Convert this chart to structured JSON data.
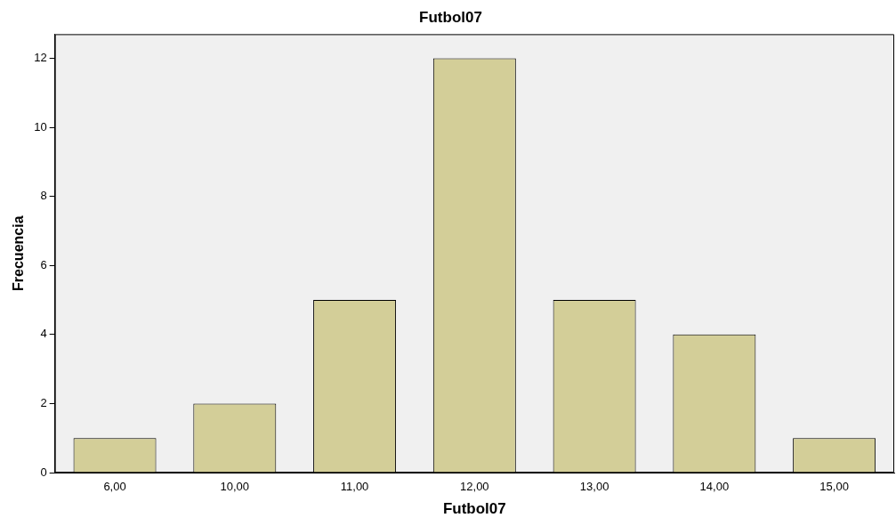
{
  "chart_data": {
    "type": "bar",
    "title": "Futbol07",
    "xlabel": "Futbol07",
    "ylabel": "Frecuencia",
    "categories": [
      "6,00",
      "10,00",
      "11,00",
      "12,00",
      "13,00",
      "14,00",
      "15,00"
    ],
    "values": [
      1,
      2,
      5,
      12,
      5,
      4,
      1
    ],
    "color": "#d3ce98",
    "ylim": [
      0,
      12.7
    ],
    "yticks": [
      0,
      2,
      4,
      6,
      8,
      10,
      12
    ],
    "grid": false,
    "legend": false
  }
}
